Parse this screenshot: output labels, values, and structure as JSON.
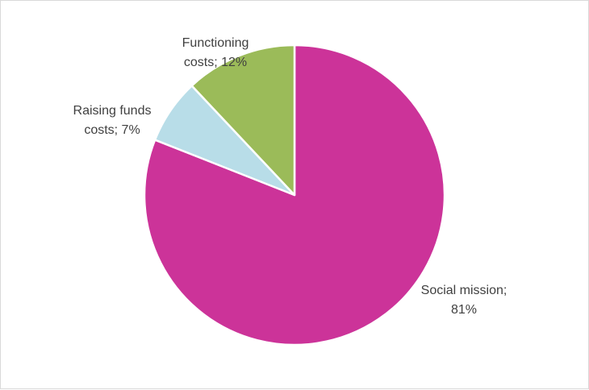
{
  "chart_data": {
    "type": "pie",
    "title": "",
    "slices": [
      {
        "name": "Social mission",
        "value": 81,
        "label_lines": [
          "Social mission;",
          "81%"
        ],
        "color": "#cc3399"
      },
      {
        "name": "Raising funds costs",
        "value": 7,
        "label_lines": [
          "Raising funds",
          "costs; 7%"
        ],
        "color": "#b8dde8"
      },
      {
        "name": "Functioning costs",
        "value": 12,
        "label_lines": [
          "Functioning",
          "costs; 12%"
        ],
        "color": "#9bbb59"
      }
    ],
    "start_angle_deg": 0,
    "direction": "clockwise",
    "slice_border_color": "#ffffff",
    "legend": "none"
  }
}
